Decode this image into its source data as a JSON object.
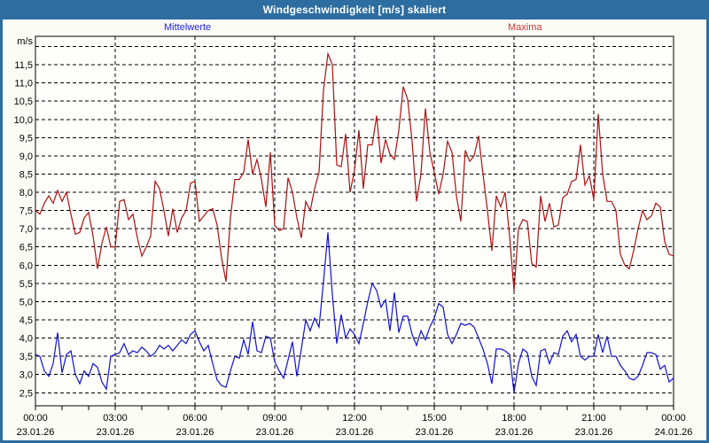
{
  "window": {
    "title": "Windgeschwindigkeit [m/s] skaliert"
  },
  "legend": {
    "mean_label": "Mittelwerte",
    "max_label": "Maxima"
  },
  "colors": {
    "frame": "#2e6d9f",
    "title_text": "#ffffff",
    "panel_bg": "#fcfcf6",
    "plot_bg": "#fefefb",
    "grid": "#000000",
    "axis_text": "#000000",
    "mean_line": "#1111cc",
    "max_line": "#aa1111",
    "mean_legend_text": "#2222dd",
    "max_legend_text": "#cc3333"
  },
  "chart_data": {
    "type": "line",
    "title": "Windgeschwindigkeit [m/s] skaliert",
    "unit_label": "m/s",
    "grid": true,
    "legend_position": "top",
    "x_interval_minutes": 10,
    "x_range_minutes": [
      0,
      1440
    ],
    "ylim": [
      2.14,
      12.28
    ],
    "y_grid_range": [
      2.5,
      12.0
    ],
    "y_grid_step": 0.5,
    "y_tick_values": [
      11.5,
      11.0,
      10.5,
      10.0,
      9.5,
      9.0,
      8.5,
      8.0,
      7.5,
      7.0,
      6.5,
      6.0,
      5.5,
      5.0,
      4.5,
      4.0,
      3.5,
      3.0,
      2.5
    ],
    "y_tick_labels": [
      "11,5",
      "11,0",
      "10,5",
      "10,0",
      "9,5",
      "9,0",
      "8,5",
      "8,0",
      "7,5",
      "7,0",
      "6,5",
      "6,0",
      "5,5",
      "5,0",
      "4,5",
      "4,0",
      "3,5",
      "3,0",
      "2,5"
    ],
    "x_minor_tick_hours": 1,
    "x_major_ticks": [
      {
        "hour": 0,
        "time": "00:00",
        "date": "23.01.26"
      },
      {
        "hour": 3,
        "time": "03:00",
        "date": "23.01.26"
      },
      {
        "hour": 6,
        "time": "06:00",
        "date": "23.01.26"
      },
      {
        "hour": 9,
        "time": "09:00",
        "date": "23.01.26"
      },
      {
        "hour": 12,
        "time": "12:00",
        "date": "23.01.26"
      },
      {
        "hour": 15,
        "time": "15:00",
        "date": "23.01.26"
      },
      {
        "hour": 18,
        "time": "18:00",
        "date": "23.01.26"
      },
      {
        "hour": 21,
        "time": "21:00",
        "date": "23.01.26"
      },
      {
        "hour": 24,
        "time": "00:00",
        "date": "24.01.26"
      }
    ],
    "series": [
      {
        "name": "Mittelwerte",
        "color_key": "mean_line",
        "values": [
          3.55,
          3.5,
          3.1,
          2.95,
          3.3,
          4.15,
          3.05,
          3.55,
          3.65,
          3.0,
          2.75,
          3.1,
          2.95,
          3.3,
          3.2,
          2.8,
          2.6,
          3.5,
          3.55,
          3.6,
          3.85,
          3.55,
          3.65,
          3.6,
          3.75,
          3.65,
          3.5,
          3.6,
          3.8,
          3.7,
          3.8,
          3.65,
          3.8,
          3.95,
          3.85,
          4.1,
          4.2,
          3.9,
          3.65,
          3.8,
          3.3,
          2.85,
          2.7,
          2.65,
          3.1,
          3.5,
          3.45,
          3.95,
          3.55,
          4.45,
          3.65,
          3.6,
          4.05,
          4.0,
          3.35,
          3.1,
          2.9,
          3.4,
          3.9,
          2.95,
          3.7,
          4.5,
          4.2,
          4.55,
          4.3,
          5.55,
          6.9,
          5.2,
          3.85,
          4.65,
          4.0,
          4.25,
          4.1,
          3.85,
          4.4,
          5.0,
          5.5,
          5.3,
          4.85,
          5.05,
          4.2,
          5.25,
          4.15,
          4.6,
          4.6,
          4.1,
          3.8,
          4.2,
          3.95,
          4.3,
          4.55,
          4.95,
          4.85,
          4.1,
          3.85,
          4.1,
          4.4,
          4.35,
          4.4,
          4.3,
          4.0,
          3.7,
          3.3,
          2.75,
          3.7,
          3.7,
          3.65,
          3.55,
          2.5,
          3.3,
          3.7,
          3.6,
          2.95,
          2.7,
          3.65,
          3.7,
          3.3,
          3.6,
          3.55,
          4.05,
          4.2,
          3.9,
          4.1,
          3.5,
          3.4,
          3.5,
          3.5,
          4.1,
          3.6,
          4.05,
          3.5,
          3.5,
          3.25,
          3.1,
          2.9,
          2.85,
          2.95,
          3.25,
          3.6,
          3.6,
          3.55,
          3.15,
          3.25,
          2.8,
          2.9
        ]
      },
      {
        "name": "Maxima",
        "color_key": "max_line",
        "values": [
          7.5,
          7.4,
          7.7,
          7.9,
          7.7,
          8.05,
          7.75,
          8.0,
          7.4,
          6.85,
          6.9,
          7.3,
          7.45,
          6.8,
          5.9,
          6.6,
          7.05,
          6.5,
          6.5,
          7.75,
          7.8,
          7.25,
          7.4,
          6.75,
          6.25,
          6.5,
          6.8,
          8.3,
          8.1,
          7.5,
          6.8,
          7.55,
          6.9,
          7.3,
          7.5,
          8.25,
          8.3,
          7.2,
          7.35,
          7.5,
          7.55,
          7.1,
          6.2,
          5.55,
          7.3,
          8.35,
          8.35,
          8.55,
          9.45,
          8.5,
          8.9,
          8.35,
          7.6,
          9.1,
          7.1,
          6.95,
          7.0,
          8.4,
          8.0,
          7.3,
          6.75,
          7.75,
          7.5,
          8.1,
          8.55,
          10.8,
          11.8,
          11.5,
          8.75,
          8.7,
          9.6,
          8.0,
          8.6,
          9.7,
          8.1,
          9.3,
          9.3,
          10.1,
          8.8,
          9.45,
          9.05,
          8.9,
          9.7,
          10.9,
          10.55,
          9.4,
          7.75,
          8.5,
          10.3,
          9.1,
          8.55,
          7.95,
          8.5,
          9.4,
          9.1,
          7.9,
          7.2,
          9.15,
          8.85,
          9.0,
          9.55,
          8.5,
          7.5,
          6.4,
          7.9,
          7.6,
          8.0,
          6.8,
          5.3,
          7.0,
          7.25,
          7.2,
          6.05,
          5.95,
          7.9,
          7.2,
          7.7,
          7.05,
          7.1,
          7.85,
          7.95,
          8.3,
          8.35,
          9.3,
          8.2,
          8.45,
          7.8,
          10.15,
          8.5,
          7.75,
          7.75,
          7.5,
          6.3,
          6.0,
          5.9,
          6.4,
          7.0,
          7.5,
          7.25,
          7.35,
          7.7,
          7.6,
          6.65,
          6.3,
          6.25
        ]
      }
    ]
  }
}
